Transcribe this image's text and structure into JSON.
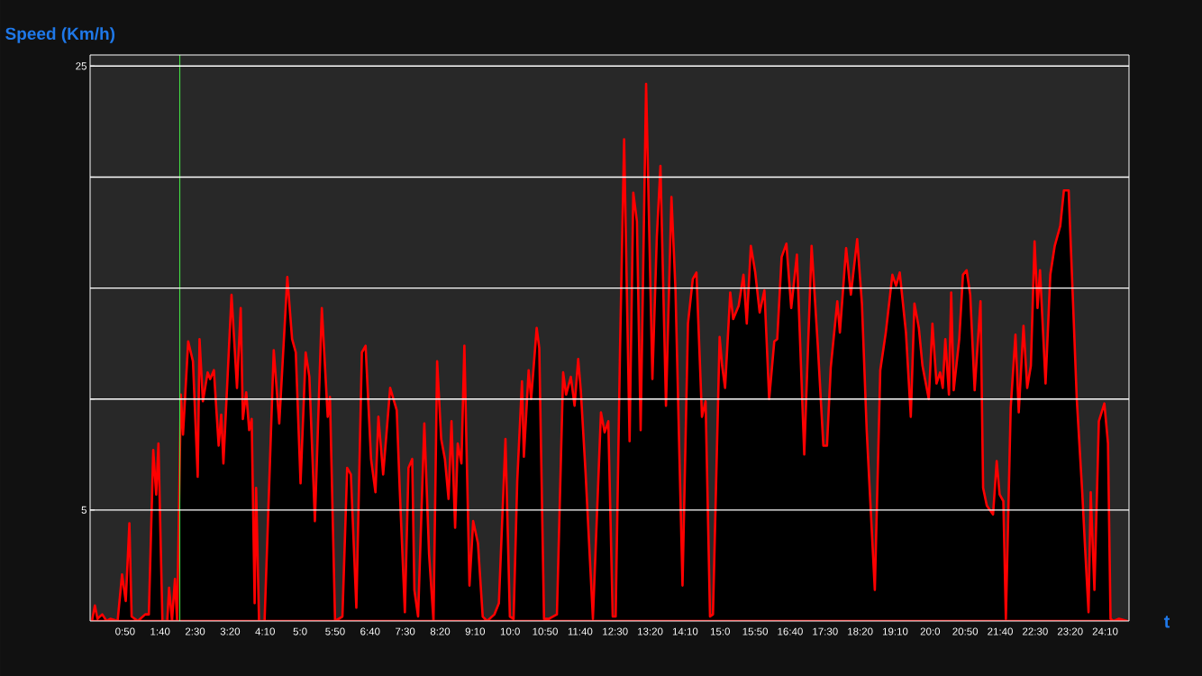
{
  "chart_data": {
    "type": "area",
    "xlabel": "t",
    "ylabel": "Speed (Km/h)",
    "color": "#ff0000",
    "x": [
      2.6,
      6.8,
      10.5,
      17.3,
      23.6,
      28.9,
      39.3,
      45.6,
      50.9,
      56.1,
      59.3,
      68.2,
      78.7,
      83.9,
      90.2,
      94.4,
      97.6,
      103.3,
      110.2,
      112.8,
      117.0,
      121.2,
      124.3,
      129.6,
      132.7,
      140.1,
      146.9,
      153.7,
      156.3,
      161.1,
      167.9,
      171.5,
      176.8,
      183.6,
      187.3,
      190.4,
      202.0,
      209.8,
      215.1,
      218.2,
      223.0,
      227.2,
      230.8,
      235.0,
      237.1,
      241.3,
      249.2,
      262.3,
      270.2,
      281.7,
      288.5,
      293.8,
      300.6,
      307.9,
      313.2,
      321.1,
      331.0,
      339.4,
      342.6,
      349.9,
      360.4,
      367.2,
      372.5,
      380.3,
      388.2,
      393.5,
      401.3,
      407.6,
      411.8,
      418.6,
      428.6,
      438.0,
      442.2,
      449.6,
      454.8,
      460.1,
      463.2,
      468.5,
      477.4,
      484.2,
      490.5,
      495.7,
      501.5,
      506.8,
      512.0,
      516.2,
      521.4,
      525.1,
      530.4,
      534.6,
      541.9,
      547.2,
      554.0,
      560.8,
      567.1,
      577.6,
      583.9,
      593.3,
      599.6,
      604.9,
      610.1,
      616.9,
      619.6,
      626.4,
      630.0,
      637.9,
      641.6,
      648.4,
      655.2,
      666.8,
      675.7,
      679.9,
      686.7,
      692.0,
      697.2,
      700.9,
      707.7,
      718.2,
      729.7,
      735.0,
      740.2,
      746.5,
      750.7,
      757.0,
      762.8,
      770.6,
      775.9,
      781.1,
      786.4,
      794.2,
      803.2,
      809.5,
      814.7,
      822.6,
      830.4,
      836.2,
      846.2,
      854.0,
      860.9,
      866.1,
      874.0,
      879.2,
      885.5,
      889.7,
      899.2,
      902.8,
      907.0,
      914.4,
      918.6,
      926.4,
      933.3,
      938.0,
      943.8,
      950.1,
      956.4,
      963.2,
      970.0,
      977.3,
      981.5,
      987.8,
      994.6,
      1001.5,
      1009.6,
      1020.1,
      1030.6,
      1039.5,
      1047.4,
      1052.6,
      1057.9,
      1067.3,
      1071.0,
      1079.9,
      1086.7,
      1095.7,
      1102.5,
      1109.3,
      1120.9,
      1128.7,
      1136.6,
      1146.0,
      1151.3,
      1156.5,
      1165.4,
      1172.3,
      1177.5,
      1183.8,
      1189.0,
      1198.0,
      1203.2,
      1209.0,
      1214.2,
      1217.9,
      1221.6,
      1226.8,
      1230.0,
      1233.6,
      1241.5,
      1246.8,
      1252.0,
      1257.2,
      1263.5,
      1271.9,
      1275.6,
      1280.9,
      1289.8,
      1295.0,
      1299.2,
      1304.5,
      1308.1,
      1315.0,
      1321.8,
      1326.5,
      1333.3,
      1338.6,
      1343.8,
      1349.1,
      1353.3,
      1356.9,
      1364.8,
      1371.6,
      1377.9,
      1385.8,
      1391.0,
      1397.8,
      1409.4,
      1417.2,
      1420.9,
      1426.2,
      1429.3,
      1434.6,
      1440.9,
      1448.8,
      1454.0,
      1457.6,
      1461.9,
      1469.7,
      1481.7
    ],
    "values": [
      0,
      0.7,
      0.1,
      0.3,
      0,
      0.1,
      0,
      2.1,
      0.9,
      4.4,
      0.2,
      0,
      0.3,
      0.3,
      7.7,
      5.7,
      8.0,
      0,
      0,
      1.5,
      0,
      1.9,
      0,
      10.2,
      8.4,
      12.6,
      11.7,
      6.5,
      12.7,
      9.9,
      11.2,
      10.9,
      11.3,
      7.9,
      9.3,
      7.1,
      14.7,
      10.5,
      14.1,
      9.1,
      10.3,
      8.6,
      9.1,
      0.8,
      6.0,
      0,
      0,
      12.2,
      8.9,
      15.5,
      12.7,
      12.1,
      6.2,
      12.1,
      11.0,
      4.5,
      14.1,
      9.2,
      10.1,
      0,
      0.2,
      6.9,
      6.6,
      0.6,
      12.1,
      12.4,
      7.3,
      5.8,
      9.2,
      6.6,
      10.5,
      9.5,
      6.0,
      0.4,
      6.9,
      7.3,
      1.4,
      0.2,
      8.9,
      3.0,
      0,
      11.7,
      8.2,
      7.3,
      5.5,
      9.0,
      4.2,
      8.0,
      7.1,
      12.4,
      1.6,
      4.5,
      3.5,
      0.2,
      0,
      0.3,
      0.8,
      8.2,
      0.2,
      0.1,
      6.3,
      10.8,
      7.4,
      11.3,
      10.0,
      13.2,
      12.3,
      0.1,
      0.1,
      0.3,
      11.2,
      10.2,
      11.0,
      9.7,
      11.8,
      10.4,
      6.7,
      0.1,
      9.4,
      8.5,
      9.0,
      0.2,
      0.2,
      12.3,
      21.7,
      8.1,
      19.3,
      18.0,
      8.6,
      24.2,
      10.9,
      17.3,
      20.5,
      9.7,
      19.1,
      14.9,
      1.6,
      13.4,
      15.4,
      15.7,
      9.2,
      9.9,
      0.2,
      0.3,
      12.8,
      11.5,
      10.5,
      14.8,
      13.6,
      14.2,
      15.6,
      13.4,
      16.9,
      15.7,
      13.9,
      14.9,
      10.0,
      12.6,
      12.7,
      16.4,
      17.0,
      14.1,
      16.5,
      7.5,
      16.9,
      12.4,
      7.9,
      7.9,
      11.4,
      14.4,
      13.0,
      16.8,
      14.7,
      17.2,
      14.3,
      8.6,
      1.4,
      11.3,
      13.0,
      15.6,
      15.1,
      15.7,
      13.0,
      9.2,
      14.3,
      13.2,
      11.5,
      10.0,
      13.4,
      10.7,
      11.2,
      10.5,
      12.7,
      10.2,
      14.8,
      10.4,
      12.7,
      15.6,
      15.8,
      14.7,
      10.4,
      14.4,
      6.0,
      5.2,
      4.8,
      7.2,
      5.7,
      5.4,
      0.1,
      9.6,
      12.9,
      9.4,
      13.3,
      10.5,
      11.5,
      17.1,
      14.1,
      15.8,
      10.7,
      15.6,
      16.9,
      17.8,
      19.4,
      19.4,
      10.0,
      5.8,
      3.5,
      0.4,
      5.8,
      1.4,
      9.0,
      9.8,
      8.0,
      0.1,
      0,
      0.1,
      0
    ],
    "xlim": [
      0,
      1484
    ],
    "ylim": [
      0,
      25.5
    ],
    "xticks": [
      {
        "value": 50,
        "label": "0:50"
      },
      {
        "value": 100,
        "label": "1:40"
      },
      {
        "value": 150,
        "label": "2:30"
      },
      {
        "value": 200,
        "label": "3:20"
      },
      {
        "value": 250,
        "label": "4:10"
      },
      {
        "value": 300,
        "label": "5:0"
      },
      {
        "value": 350,
        "label": "5:50"
      },
      {
        "value": 400,
        "label": "6:40"
      },
      {
        "value": 450,
        "label": "7:30"
      },
      {
        "value": 500,
        "label": "8:20"
      },
      {
        "value": 550,
        "label": "9:10"
      },
      {
        "value": 600,
        "label": "10:0"
      },
      {
        "value": 650,
        "label": "10:50"
      },
      {
        "value": 700,
        "label": "11:40"
      },
      {
        "value": 750,
        "label": "12:30"
      },
      {
        "value": 800,
        "label": "13:20"
      },
      {
        "value": 850,
        "label": "14:10"
      },
      {
        "value": 900,
        "label": "15:0"
      },
      {
        "value": 950,
        "label": "15:50"
      },
      {
        "value": 1000,
        "label": "16:40"
      },
      {
        "value": 1050,
        "label": "17:30"
      },
      {
        "value": 1100,
        "label": "18:20"
      },
      {
        "value": 1150,
        "label": "19:10"
      },
      {
        "value": 1200,
        "label": "20:0"
      },
      {
        "value": 1250,
        "label": "20:50"
      },
      {
        "value": 1300,
        "label": "21:40"
      },
      {
        "value": 1350,
        "label": "22:30"
      },
      {
        "value": 1400,
        "label": "23:20"
      },
      {
        "value": 1450,
        "label": "24:10"
      }
    ],
    "yticks": [
      5,
      {
        "value": 10,
        "label": null
      },
      {
        "value": 15,
        "label": null
      },
      {
        "value": 20,
        "label": null
      },
      25
    ],
    "grid": "y",
    "ref_lines": [
      {
        "axis": "x",
        "value": 128,
        "color": "#44dd44"
      }
    ]
  }
}
